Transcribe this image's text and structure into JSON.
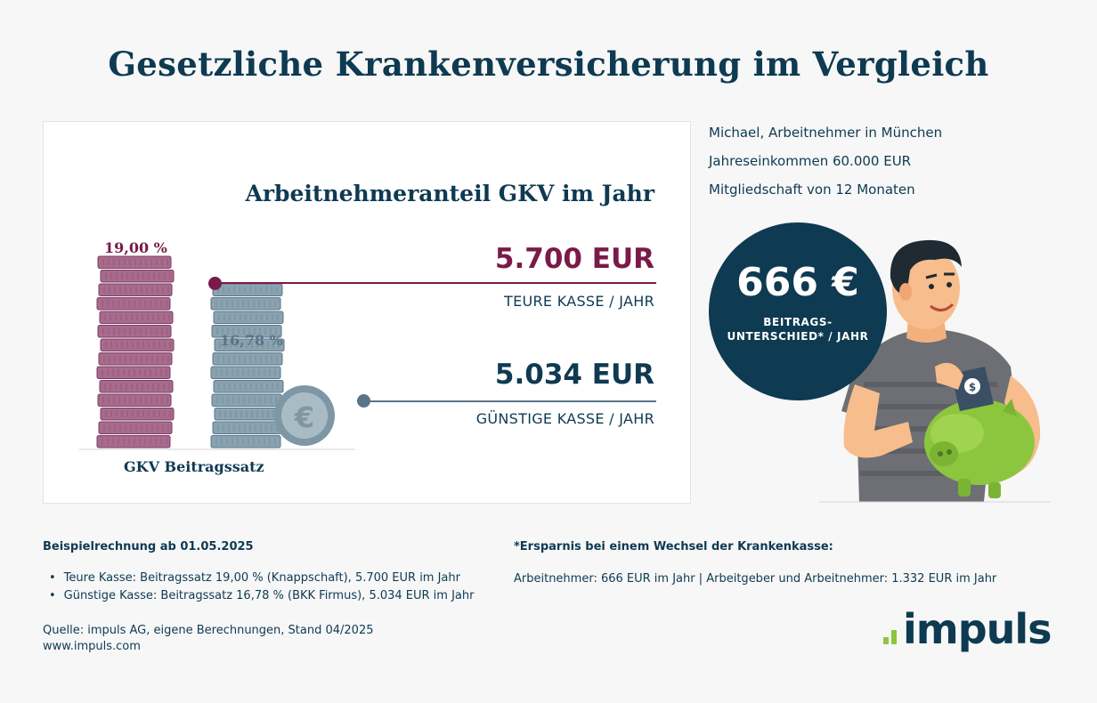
{
  "page": {
    "title": "Gesetzliche Krankenversicherung im Vergleich"
  },
  "chart_data": {
    "type": "bar",
    "title": "Arbeitnehmeranteil GKV im Jahr",
    "xlabel": "GKV Beitragssatz",
    "ylabel": "",
    "categories": [
      "Teure Kasse / Jahr",
      "Günstige Kasse / Jahr"
    ],
    "series": [
      {
        "values": [
          19.0,
          16.78
        ],
        "value_labels": [
          "19,00 %",
          "16,78 %"
        ]
      }
    ],
    "annotations": [
      {
        "amount": "5.700 EUR",
        "label": "TEURE KASSE / JAHR"
      },
      {
        "amount": "5.034 EUR",
        "label": "GÜNSTIGE KASSE / JAHR"
      }
    ],
    "legend": "none",
    "grid": false
  },
  "profile": {
    "line1": "Michael, Arbeitnehmer in München",
    "line2": "Jahreseinkommen 60.000 EUR",
    "line3": "Mitgliedschaft von 12 Monaten"
  },
  "badge": {
    "value": "666 €",
    "label_line1": "BEITRAGS-",
    "label_line2": "UNTERSCHIED* / JAHR"
  },
  "footer": {
    "example_heading": "Beispielrechnung ab 01.05.2025",
    "bullets": [
      "Teure Kasse: Beitragssatz 19,00 % (Knappschaft), 5.700 EUR im Jahr",
      "Günstige Kasse: Beitragssatz 16,78 % (BKK Firmus), 5.034 EUR im Jahr"
    ],
    "saving_heading": "*Ersparnis bei einem Wechsel der Krankenkasse:",
    "saving_text": "Arbeitnehmer: 666 EUR im Jahr | Arbeitgeber und Arbeitnehmer: 1.332 EUR im Jahr",
    "source": "Quelle: impuls AG, eigene Berechnungen, Stand 04/2025",
    "url": "www.impuls.com"
  },
  "logo": {
    "text": "impuls"
  },
  "colors": {
    "navy": "#0e3a52",
    "plum": "#7a1a48",
    "coin_plum": "#a86b8d",
    "coin_steel": "#8aa3b0",
    "slate": "#58748a",
    "logo_green": "#8cc63f"
  }
}
